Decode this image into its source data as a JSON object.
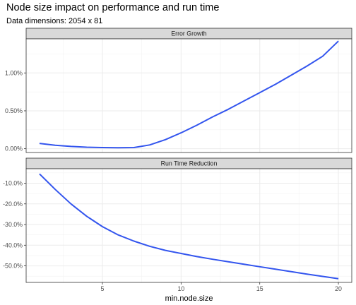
{
  "title": "Node size impact on performance and run time",
  "subtitle": "Data dimensions: 2054 x 81",
  "chart_data": {
    "type": "line",
    "xlabel": "min.node.size",
    "xlim": [
      0.15,
      20.85
    ],
    "x_ticks": [
      5,
      10,
      15,
      20
    ],
    "x_tick_labels": [
      "5",
      "10",
      "15",
      "20"
    ],
    "grid": true,
    "line_color": "#3355EE",
    "panels": [
      {
        "name": "Error Growth",
        "ylim": [
          -0.0005,
          0.0145
        ],
        "y_ticks": [
          0,
          0.005,
          0.01
        ],
        "y_tick_labels": [
          "0.00%",
          "0.50%",
          "1.00%"
        ],
        "x": [
          1,
          2,
          3,
          4,
          5,
          6,
          7,
          8,
          9,
          10,
          11,
          12,
          13,
          14,
          15,
          16,
          17,
          18,
          19,
          20
        ],
        "y": [
          0.0007,
          0.00045,
          0.0003,
          0.0002,
          0.00015,
          0.00012,
          0.00015,
          0.0005,
          0.0012,
          0.0021,
          0.0031,
          0.0042,
          0.0052,
          0.0063,
          0.0074,
          0.0085,
          0.0097,
          0.0109,
          0.0122,
          0.0142
        ]
      },
      {
        "name": "Run Time Reduction",
        "ylim": [
          -0.58,
          -0.03
        ],
        "y_ticks": [
          -0.1,
          -0.2,
          -0.3,
          -0.4,
          -0.5
        ],
        "y_tick_labels": [
          "-10.0%",
          "-20.0%",
          "-30.0%",
          "-40.0%",
          "-50.0%"
        ],
        "x": [
          1,
          2,
          3,
          4,
          5,
          6,
          7,
          8,
          9,
          10,
          11,
          12,
          13,
          14,
          15,
          16,
          17,
          18,
          19,
          20
        ],
        "y": [
          -0.055,
          -0.13,
          -0.2,
          -0.26,
          -0.31,
          -0.35,
          -0.38,
          -0.405,
          -0.425,
          -0.44,
          -0.455,
          -0.468,
          -0.48,
          -0.492,
          -0.504,
          -0.516,
          -0.528,
          -0.54,
          -0.551,
          -0.562
        ]
      }
    ]
  }
}
